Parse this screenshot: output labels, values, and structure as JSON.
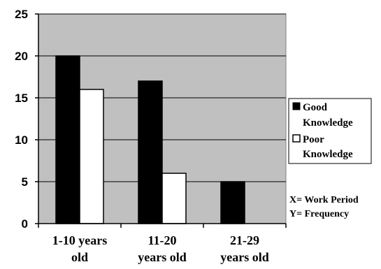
{
  "chart_data": {
    "type": "bar",
    "categories": [
      [
        "1-10 years",
        "old"
      ],
      [
        "11-20",
        "years old"
      ],
      [
        "21-29",
        "years old"
      ]
    ],
    "series": [
      {
        "name": "Good Knowledge",
        "legend_lines": [
          "Good",
          "Knowledge"
        ],
        "values": [
          20,
          17,
          5
        ],
        "color": "#000000"
      },
      {
        "name": "Poor Knowledge",
        "legend_lines": [
          "Poor",
          "Knowledge"
        ],
        "values": [
          16,
          6,
          0
        ],
        "color": "#ffffff"
      }
    ],
    "ylim": [
      0,
      25
    ],
    "yticks": [
      "0",
      "5",
      "10",
      "15",
      "20",
      "25"
    ],
    "grid": true,
    "plot_background": "#c0c0c0",
    "legend_position": "right",
    "annotations": [
      "X= Work Period",
      "Y= Frequency"
    ]
  }
}
